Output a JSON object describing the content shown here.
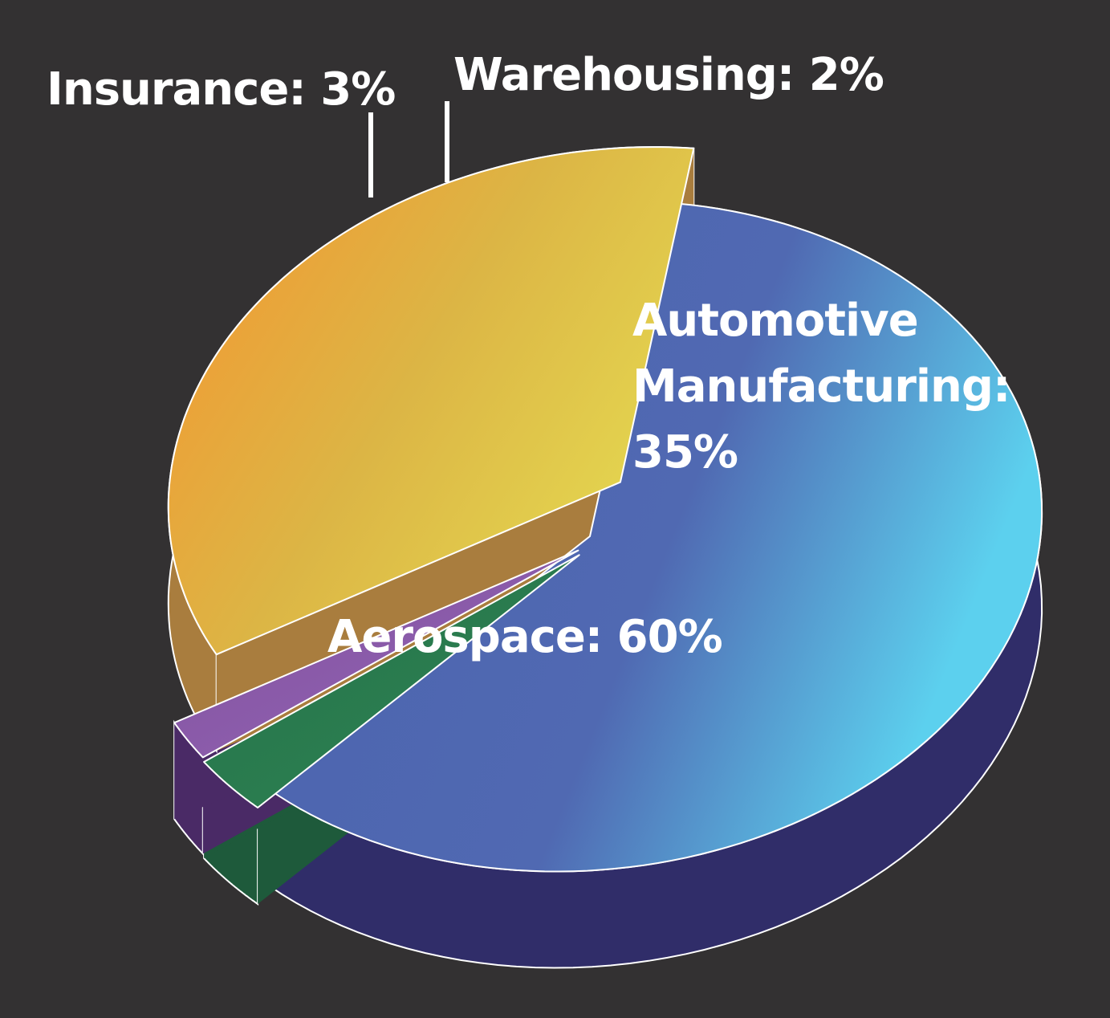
{
  "chart_data": {
    "type": "pie",
    "title": "",
    "style": "3d-exploded",
    "background": "#333132",
    "categories": [
      "Aerospace",
      "Insurance",
      "Warehousing",
      "Automotive Manufacturing"
    ],
    "values": [
      60,
      3,
      2,
      35
    ],
    "unit": "%",
    "slices": [
      {
        "name": "Aerospace",
        "value": 60,
        "color": "#4E69B1",
        "label_lines": [
          "Aerospace: 60%"
        ]
      },
      {
        "name": "Insurance",
        "value": 3,
        "color": "#2C7A4E",
        "label_lines": [
          "Insurance: 3%"
        ]
      },
      {
        "name": "Warehousing",
        "value": 2,
        "color": "#8C5BA8",
        "label_lines": [
          "Warehousing: 2%"
        ]
      },
      {
        "name": "Automotive Manufacturing",
        "value": 35,
        "color": "#E2B23E",
        "label_lines": [
          "Automotive",
          "Manufacturing:",
          "35%"
        ]
      }
    ],
    "legend": "none"
  }
}
